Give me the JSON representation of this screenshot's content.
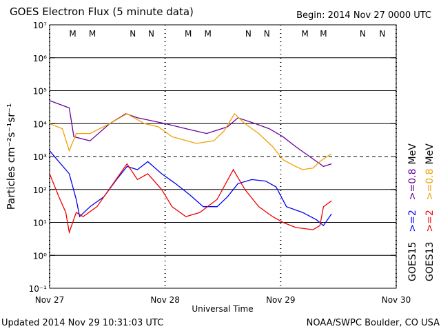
{
  "chart_data": {
    "type": "line",
    "title": "GOES Electron Flux (5 minute data)",
    "subtitle": "Begin: 2014 Nov 27 0000 UTC",
    "ylabel": "Particles cm⁻²s⁻¹sr⁻¹",
    "xlabel": "Universal Time",
    "footer_left": "Updated 2014 Nov 29 10:31:03 UTC",
    "footer_right": "NOAA/SWPC Boulder, CO USA",
    "log_y": true,
    "grid": true,
    "threshold": 1000,
    "ylim": [
      0.1,
      10000000
    ],
    "yticks": [
      {
        "value": 0.1,
        "label": "10⁻¹"
      },
      {
        "value": 1,
        "label": "10⁰"
      },
      {
        "value": 10,
        "label": "10¹"
      },
      {
        "value": 100,
        "label": "10²"
      },
      {
        "value": 1000,
        "label": "10³"
      },
      {
        "value": 10000,
        "label": "10⁴"
      },
      {
        "value": 100000,
        "label": "10⁵"
      },
      {
        "value": 1000000,
        "label": "10⁶"
      },
      {
        "value": 10000000,
        "label": "10⁷"
      }
    ],
    "xlim": [
      0,
      3
    ],
    "xticks": [
      {
        "value": 0,
        "label": "Nov 27"
      },
      {
        "value": 1,
        "label": "Nov 28"
      },
      {
        "value": 2,
        "label": "Nov 29"
      },
      {
        "value": 3,
        "label": "Nov 30"
      }
    ],
    "legend": {
      "satellites": [
        "GOES15",
        "GOES13"
      ],
      "unit": "MeV"
    },
    "markers": [
      {
        "label": "M",
        "x": 0.2,
        "color": "#dd0000"
      },
      {
        "label": "M",
        "x": 0.37,
        "color": "#0000cc"
      },
      {
        "label": "N",
        "x": 0.72,
        "color": "#dd0000"
      },
      {
        "label": "N",
        "x": 0.88,
        "color": "#0000cc"
      },
      {
        "label": "M",
        "x": 1.2,
        "color": "#dd0000"
      },
      {
        "label": "M",
        "x": 1.37,
        "color": "#0000cc"
      },
      {
        "label": "N",
        "x": 1.72,
        "color": "#dd0000"
      },
      {
        "label": "N",
        "x": 1.88,
        "color": "#0000cc"
      },
      {
        "label": "M",
        "x": 2.21,
        "color": "#dd0000"
      },
      {
        "label": "M",
        "x": 2.37,
        "color": "#0000cc"
      },
      {
        "label": "N",
        "x": 2.71,
        "color": "#dd0000"
      },
      {
        "label": "N",
        "x": 2.88,
        "color": "#0000cc"
      }
    ],
    "series": [
      {
        "name": ">=2",
        "color": "#0000ee",
        "x": [
          0,
          0.08,
          0.17,
          0.23,
          0.26,
          0.35,
          0.47,
          0.58,
          0.67,
          0.76,
          0.85,
          0.97,
          1.09,
          1.21,
          1.33,
          1.45,
          1.54,
          1.63,
          1.75,
          1.87,
          1.96,
          2.05,
          2.19,
          2.31,
          2.37,
          2.44
        ],
        "values": [
          1500,
          700,
          300,
          50,
          15,
          30,
          60,
          200,
          500,
          400,
          700,
          300,
          150,
          70,
          30,
          30,
          60,
          150,
          200,
          180,
          120,
          30,
          20,
          12,
          8,
          18
        ]
      },
      {
        "name": ">=2",
        "color": "#ee0000",
        "x": [
          0,
          0.08,
          0.14,
          0.17,
          0.23,
          0.29,
          0.41,
          0.55,
          0.67,
          0.76,
          0.85,
          0.97,
          1.06,
          1.18,
          1.3,
          1.45,
          1.59,
          1.69,
          1.81,
          1.93,
          2.02,
          2.13,
          2.28,
          2.34,
          2.37,
          2.44
        ],
        "values": [
          300,
          60,
          20,
          5,
          20,
          15,
          30,
          150,
          600,
          200,
          300,
          100,
          30,
          15,
          20,
          50,
          400,
          100,
          30,
          15,
          10,
          7,
          6,
          8,
          30,
          45
        ]
      },
      {
        "name": ">=0.8",
        "color": "#660099",
        "x": [
          0,
          0.17,
          0.21,
          0.35,
          0.52,
          0.66,
          0.76,
          1.0,
          1.18,
          1.36,
          1.54,
          1.63,
          1.78,
          1.9,
          2.02,
          2.13,
          2.25,
          2.34,
          2.37,
          2.44
        ],
        "values": [
          50000,
          30000,
          4000,
          3000,
          10000,
          20000,
          15000,
          10000,
          7000,
          5000,
          8000,
          15000,
          10000,
          7000,
          4000,
          2000,
          1000,
          600,
          500,
          600
        ]
      },
      {
        "name": ">=0.8",
        "color": "#eea000",
        "x": [
          0,
          0.11,
          0.17,
          0.23,
          0.35,
          0.52,
          0.67,
          0.82,
          0.94,
          1.06,
          1.27,
          1.42,
          1.51,
          1.6,
          1.69,
          1.81,
          1.93,
          2.02,
          2.13,
          2.19,
          2.28,
          2.34,
          2.4,
          2.44
        ],
        "values": [
          10000,
          7000,
          1500,
          5000,
          5000,
          10000,
          20000,
          10000,
          8000,
          4000,
          2500,
          3000,
          6000,
          20000,
          10000,
          5000,
          2000,
          800,
          500,
          400,
          450,
          700,
          1000,
          1200
        ]
      }
    ]
  }
}
